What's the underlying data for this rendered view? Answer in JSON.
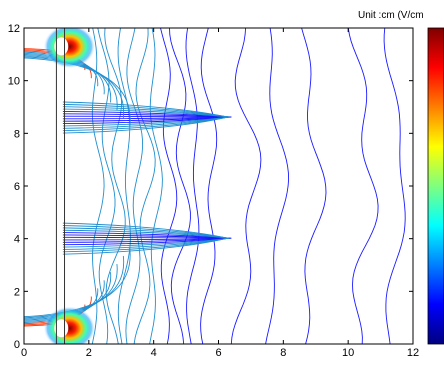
{
  "chart_data": {
    "type": "contour",
    "title": "",
    "xlabel": "",
    "ylabel": "",
    "unit_label": "Unit :cm  (V/cm",
    "xlim": [
      0,
      12
    ],
    "ylim": [
      0,
      12
    ],
    "x_ticks": [
      0,
      2,
      4,
      6,
      8,
      10,
      12
    ],
    "y_ticks": [
      0,
      2,
      4,
      6,
      8,
      10,
      12
    ],
    "grid": false,
    "colorbar": {
      "position": "right",
      "colormap": "jet",
      "stops": [
        "#00007f",
        "#0000ff",
        "#007fff",
        "#00ffff",
        "#7fff7f",
        "#ffff00",
        "#ff7f00",
        "#ff0000",
        "#7f0000"
      ]
    },
    "electrode_strips": [
      {
        "x": 1.0,
        "y_range": [
          0,
          12
        ]
      },
      {
        "x": 1.25,
        "y_range": [
          0,
          12
        ]
      }
    ],
    "field_hotspots": [
      {
        "x": 1.3,
        "y": 0.6
      },
      {
        "x": 1.3,
        "y": 11.3
      }
    ],
    "contour_colors": {
      "low": "#1a1aff",
      "mid": "#1f8fd0",
      "high": "#ff3000"
    }
  }
}
